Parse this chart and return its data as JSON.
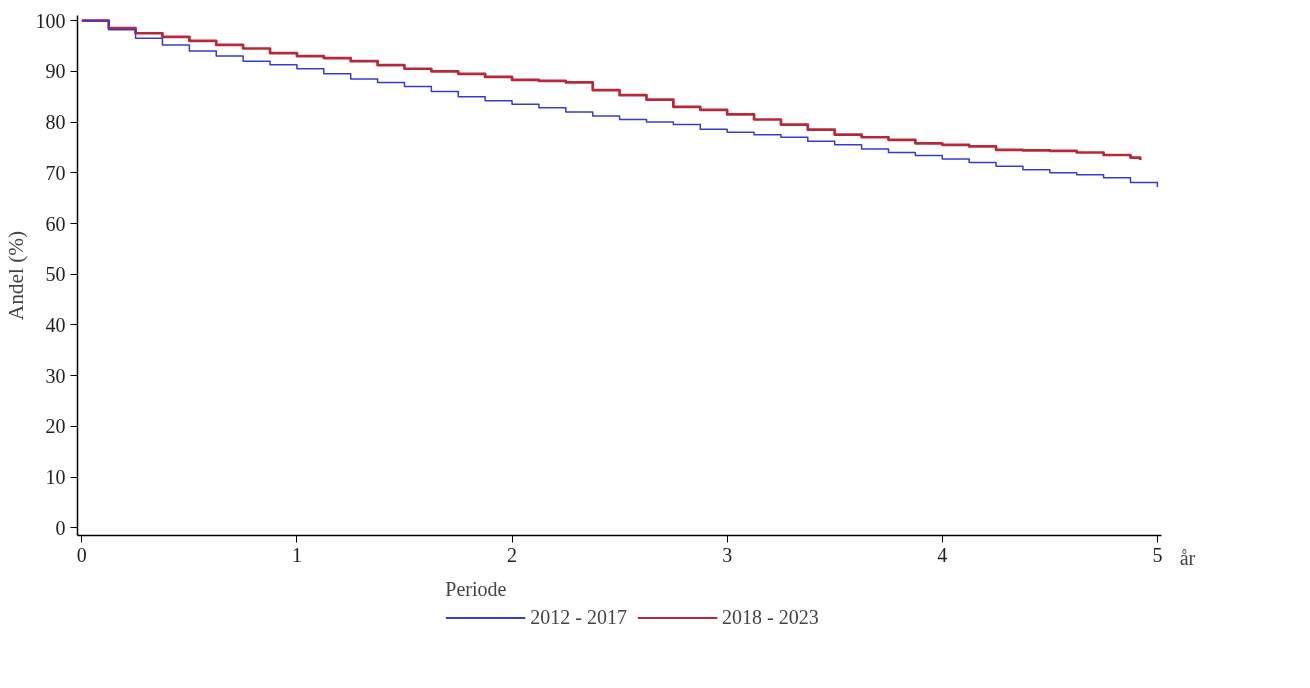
{
  "chart_data": {
    "type": "step",
    "xlabel": "år",
    "ylabel": "Andel (%)",
    "legend_title": "Periode",
    "xlim": [
      -0.02,
      5.02
    ],
    "ylim": [
      -1.5,
      101
    ],
    "xticks": [
      0,
      1,
      2,
      3,
      4,
      5
    ],
    "yticks": [
      0,
      10,
      20,
      30,
      40,
      50,
      60,
      70,
      80,
      90,
      100
    ],
    "grid": false,
    "legend": "bottom",
    "series": [
      {
        "name": "2012 - 2017",
        "color": "#3a3ad0",
        "x": [
          0,
          0.125,
          0.25,
          0.375,
          0.5,
          0.625,
          0.75,
          0.875,
          1.0,
          1.125,
          1.25,
          1.375,
          1.5,
          1.625,
          1.75,
          1.875,
          2.0,
          2.125,
          2.25,
          2.375,
          2.5,
          2.625,
          2.75,
          2.875,
          3.0,
          3.125,
          3.25,
          3.375,
          3.5,
          3.625,
          3.75,
          3.875,
          4.0,
          4.125,
          4.25,
          4.375,
          4.5,
          4.625,
          4.75,
          4.875,
          5.0
        ],
        "values": [
          100,
          98.2,
          96.5,
          95.2,
          94,
          93,
          92,
          91.3,
          90.5,
          89.5,
          88.5,
          87.8,
          87,
          86,
          85,
          84.2,
          83.5,
          82.8,
          82,
          81.2,
          80.5,
          80,
          79.5,
          78.6,
          78,
          77.5,
          77,
          76.2,
          75.5,
          74.7,
          74,
          73.4,
          72.7,
          72,
          71.3,
          70.6,
          70,
          69.6,
          69,
          68.1,
          67.2
        ]
      },
      {
        "name": "2018 - 2023",
        "color": "#b8283c",
        "x": [
          0,
          0.125,
          0.25,
          0.375,
          0.5,
          0.625,
          0.75,
          0.875,
          1.0,
          1.125,
          1.25,
          1.375,
          1.5,
          1.625,
          1.75,
          1.875,
          2.0,
          2.125,
          2.25,
          2.375,
          2.5,
          2.625,
          2.75,
          2.875,
          3.0,
          3.125,
          3.25,
          3.375,
          3.5,
          3.625,
          3.75,
          3.875,
          4.0,
          4.125,
          4.25,
          4.375,
          4.5,
          4.625,
          4.75,
          4.875,
          4.92
        ],
        "values": [
          100,
          98.5,
          97.5,
          96.8,
          96,
          95.2,
          94.5,
          93.6,
          93,
          92.6,
          92,
          91.2,
          90.5,
          90,
          89.5,
          88.9,
          88.3,
          88.1,
          87.8,
          86.3,
          85.3,
          84.4,
          83,
          82.4,
          81.5,
          80.5,
          79.5,
          78.5,
          77.5,
          77,
          76.5,
          75.8,
          75.5,
          75.2,
          74.5,
          74.4,
          74.3,
          74,
          73.5,
          73,
          72.5
        ]
      }
    ]
  }
}
